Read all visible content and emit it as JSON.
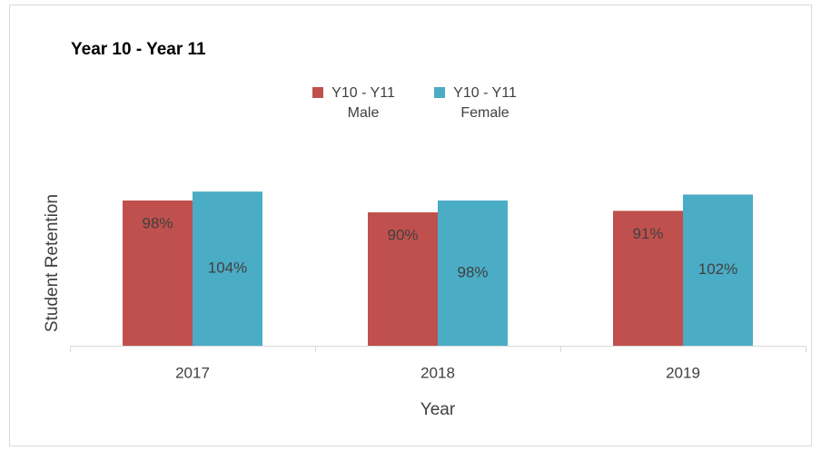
{
  "chart_data": {
    "type": "bar",
    "title": "Year 10 - Year 11",
    "x_label": "Year",
    "y_label": "Student Retention",
    "categories": [
      "2017",
      "2018",
      "2019"
    ],
    "series": [
      {
        "name": "Y10 - Y11 Male",
        "color": "#c0504d",
        "values": [
          98,
          90,
          91
        ],
        "value_labels": [
          "98%",
          "90%",
          "91%"
        ]
      },
      {
        "name": "Y10 - Y11 Female",
        "color": "#4bacc6",
        "values": [
          104,
          98,
          102
        ],
        "value_labels": [
          "104%",
          "98%",
          "102%"
        ]
      }
    ],
    "ylim": [
      0,
      120
    ],
    "legend": "top"
  }
}
